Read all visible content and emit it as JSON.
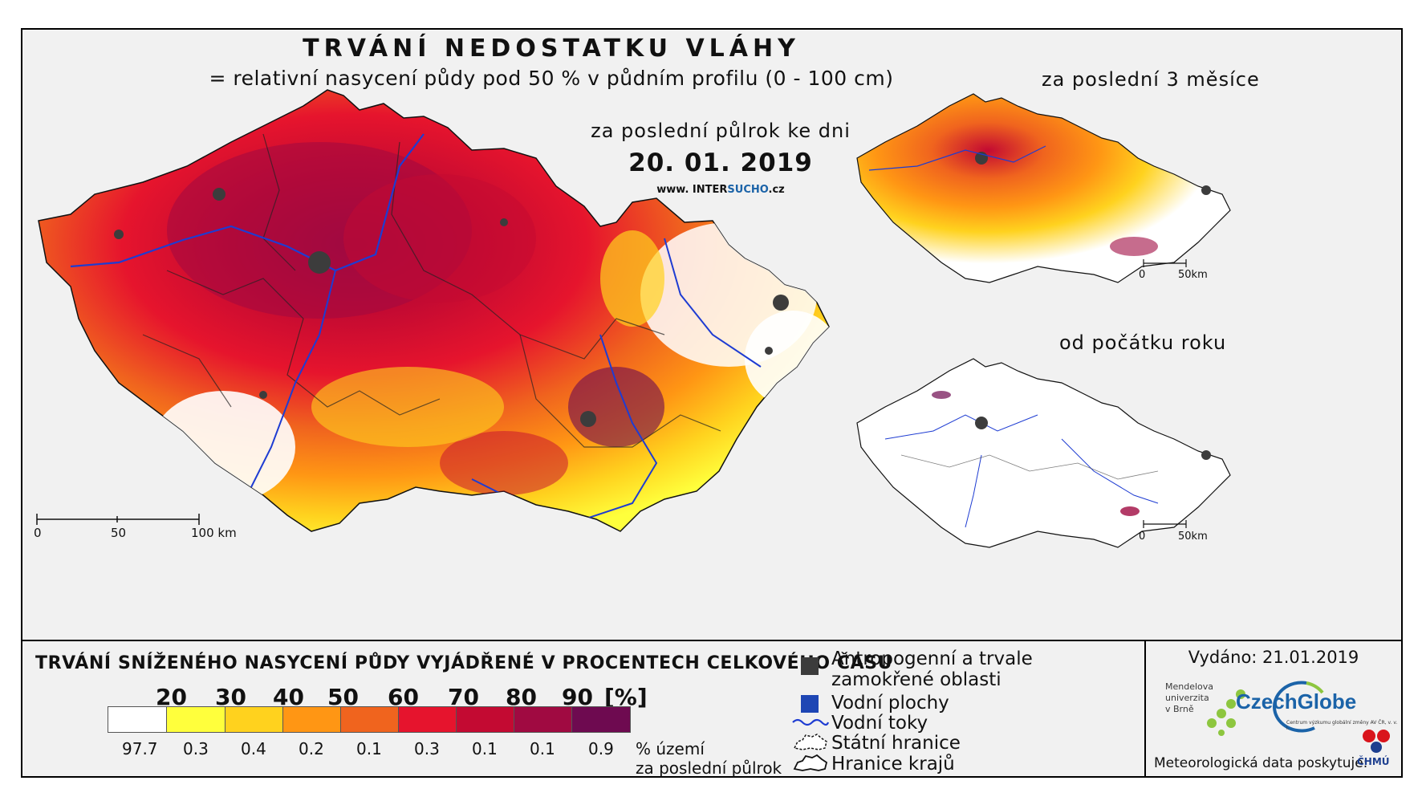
{
  "title": "TRVÁNÍ NEDOSTATKU VLÁHY",
  "subtitle": "= relativní nasycení půdy pod 50 % v půdním profilu (0 - 100 cm)",
  "main_map": {
    "period": "za poslední půlrok ke dni",
    "date": "20. 01. 2019",
    "website_prefix": "www. INTER",
    "website_highlight": "SUCHO",
    "website_suffix": ".cz",
    "scale_labels": [
      "0",
      "50",
      "100 km"
    ]
  },
  "inset_top": {
    "title": "za poslední 3 měsíce",
    "scale_labels": [
      "0",
      "50km"
    ]
  },
  "inset_bottom": {
    "title": "od počátku roku",
    "scale_labels": [
      "0",
      "50km"
    ]
  },
  "legend": {
    "title": "TRVÁNÍ SNÍŽENÉHO NASYCENÍ PŮDY VYJÁDŘENÉ V PROCENTECH CELKOVÉHO ČASU",
    "thresholds": [
      "20",
      "30",
      "40",
      "50",
      "60",
      "70",
      "80",
      "90",
      "[%]"
    ],
    "colors": [
      "#ffffff",
      "#ffff3c",
      "#ffd21e",
      "#ff9614",
      "#f0641e",
      "#e6142d",
      "#c30a32",
      "#a00a41",
      "#6e0a50"
    ],
    "area_values": [
      "97.7",
      "0.3",
      "0.4",
      "0.2",
      "0.1",
      "0.3",
      "0.1",
      "0.1",
      "0.9"
    ],
    "area_note_line1": "% území",
    "area_note_line2": "za poslední půlrok"
  },
  "symbols": {
    "urban_line1": "Antropogenní a trvale",
    "urban_line2": "zamokřené oblasti",
    "water_bodies": "Vodní plochy",
    "rivers": "Vodní toky",
    "state_border": "Státní hranice",
    "region_border": "Hranice krajů",
    "urban_color": "#3c3c3c",
    "water_color": "#1e46b4",
    "river_color": "#1e3cd2"
  },
  "footer": {
    "issued": "Vydáno: 21.01.2019",
    "mendel_line1": "Mendelova",
    "mendel_line2": "univerzita",
    "mendel_line3": "v Brně",
    "czechglobe": "CzechGlobe",
    "czechglobe_sub": "Centrum výzkumu globální změny AV ČR, v. v. i.",
    "meteo_credit": "Meteorologická data poskytuje:",
    "chmu": "ČHMÚ"
  }
}
